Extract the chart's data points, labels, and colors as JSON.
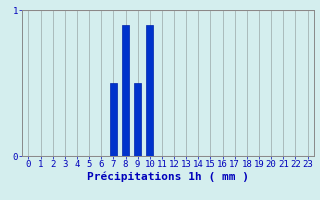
{
  "xlabel": "Précipitations 1h ( mm )",
  "ylim": [
    0,
    1.0
  ],
  "xlim": [
    -0.5,
    23.5
  ],
  "xticks": [
    0,
    1,
    2,
    3,
    4,
    5,
    6,
    7,
    8,
    9,
    10,
    11,
    12,
    13,
    14,
    15,
    16,
    17,
    18,
    19,
    20,
    21,
    22,
    23
  ],
  "yticks": [
    0,
    1
  ],
  "hours": [
    0,
    1,
    2,
    3,
    4,
    5,
    6,
    7,
    8,
    9,
    10,
    11,
    12,
    13,
    14,
    15,
    16,
    17,
    18,
    19,
    20,
    21,
    22,
    23
  ],
  "values": [
    0,
    0,
    0,
    0,
    0,
    0,
    0,
    0.5,
    0.9,
    0.5,
    0.9,
    0,
    0,
    0,
    0,
    0,
    0,
    0,
    0,
    0,
    0,
    0,
    0,
    0
  ],
  "bar_color": "#0033cc",
  "bar_edge_color": "#0022aa",
  "background_color": "#d4eeee",
  "grid_h_color": "#ee9999",
  "grid_v_color": "#aabbbb",
  "axis_color": "#888888",
  "label_color": "#0000bb",
  "tick_color": "#0000bb",
  "xlabel_fontsize": 8,
  "tick_fontsize": 6.5,
  "bar_width": 0.6
}
